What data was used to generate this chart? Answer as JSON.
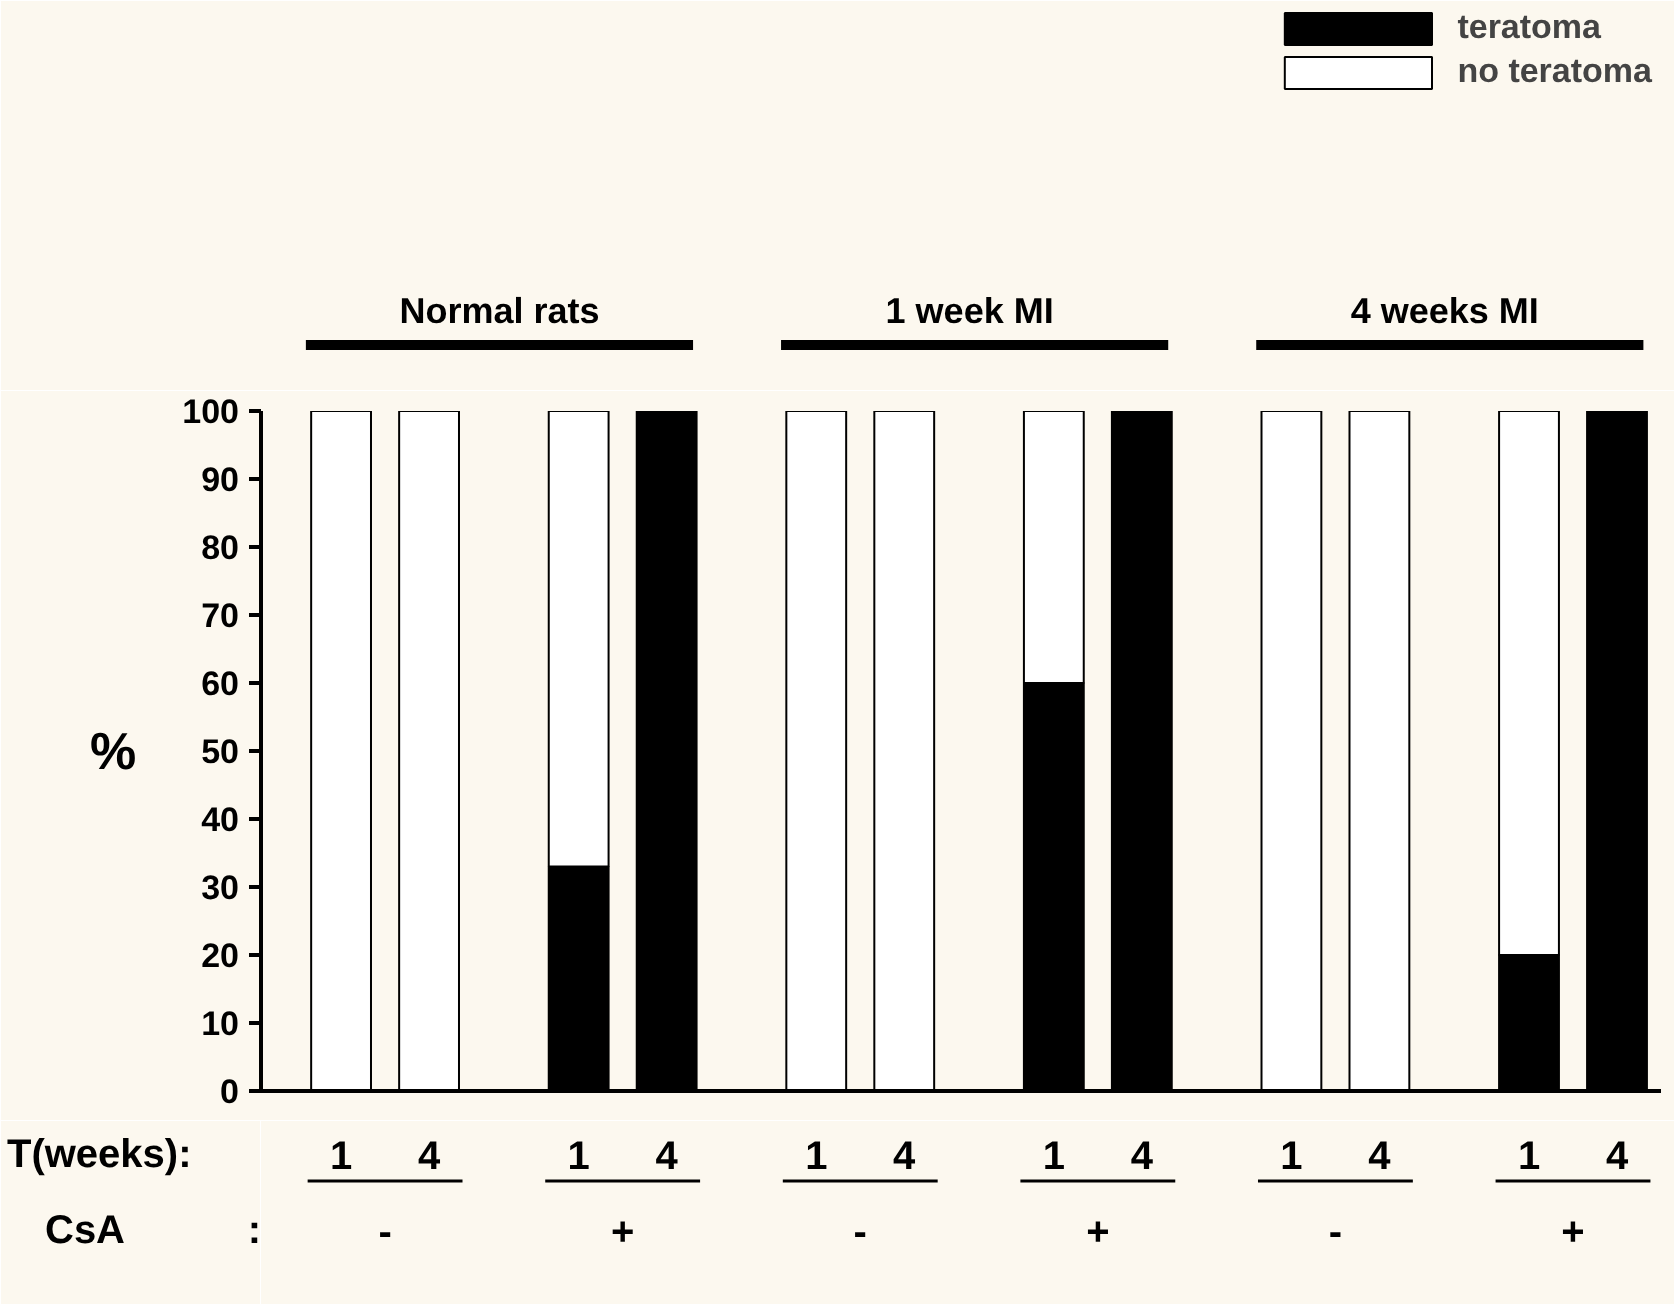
{
  "chart_data": {
    "type": "bar",
    "stacked": true,
    "ylabel": "%",
    "categories": [
      "1",
      "4",
      "1",
      "4",
      "1",
      "4",
      "1",
      "4",
      "1",
      "4",
      "1",
      "4"
    ],
    "series": [
      {
        "name": "teratoma",
        "color": "#000000",
        "values": [
          0,
          0,
          33,
          100,
          0,
          0,
          60,
          100,
          0,
          0,
          20,
          100
        ]
      },
      {
        "name": "no teratoma",
        "color": "#ffffff",
        "values": [
          100,
          100,
          67,
          0,
          100,
          100,
          40,
          0,
          100,
          100,
          80,
          0
        ]
      }
    ],
    "ylim": [
      0,
      100
    ],
    "yticks": [
      0,
      10,
      20,
      30,
      40,
      50,
      60,
      70,
      80,
      90,
      100
    ],
    "grid": false,
    "legend": "top right",
    "annotations": [
      "Normal rats",
      "1 week  MI",
      "4 weeks  MI",
      "T(weeks):",
      "CsA",
      ":",
      "-",
      "+",
      "-",
      "+",
      "-",
      "+"
    ]
  }
}
